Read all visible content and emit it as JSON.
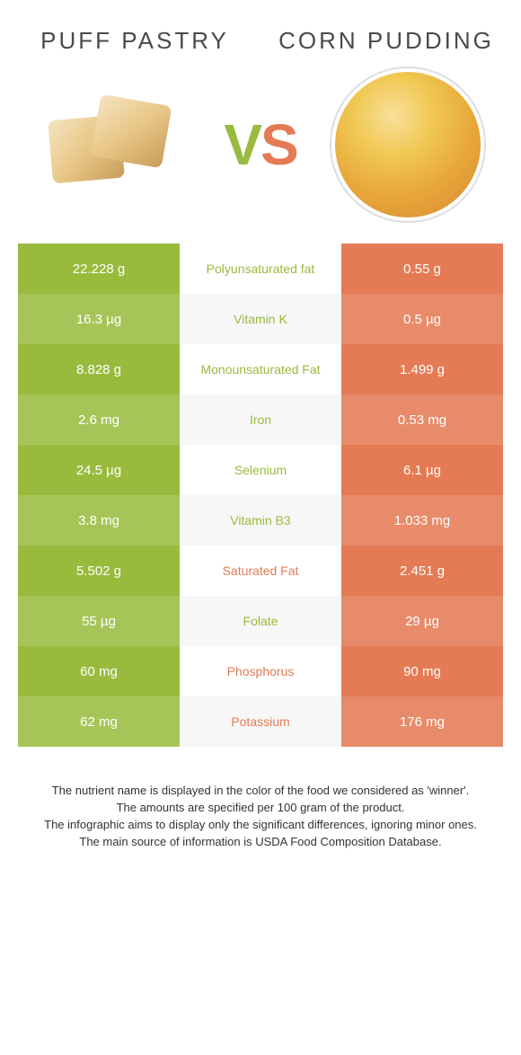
{
  "foods": {
    "left": {
      "title": "Puff pastry"
    },
    "right": {
      "title": "Corn pudding"
    }
  },
  "vs": "VS",
  "colors": {
    "left_odd": "#98bb3e",
    "left_even": "#a6c558",
    "right_odd": "#e47b55",
    "right_even": "#e78b6a",
    "mid_odd": "#ffffff",
    "mid_even": "#f7f7f7",
    "left_text": "#98bb3e",
    "right_text": "#e47b55"
  },
  "rows": [
    {
      "left": "22.228 g",
      "label": "Polyunsaturated fat",
      "right": "0.55 g",
      "winner": "left"
    },
    {
      "left": "16.3 µg",
      "label": "Vitamin K",
      "right": "0.5 µg",
      "winner": "left"
    },
    {
      "left": "8.828 g",
      "label": "Monounsaturated Fat",
      "right": "1.499 g",
      "winner": "left"
    },
    {
      "left": "2.6 mg",
      "label": "Iron",
      "right": "0.53 mg",
      "winner": "left"
    },
    {
      "left": "24.5 µg",
      "label": "Selenium",
      "right": "6.1 µg",
      "winner": "left"
    },
    {
      "left": "3.8 mg",
      "label": "Vitamin B3",
      "right": "1.033 mg",
      "winner": "left"
    },
    {
      "left": "5.502 g",
      "label": "Saturated Fat",
      "right": "2.451 g",
      "winner": "right"
    },
    {
      "left": "55 µg",
      "label": "Folate",
      "right": "29 µg",
      "winner": "left"
    },
    {
      "left": "60 mg",
      "label": "Phosphorus",
      "right": "90 mg",
      "winner": "right"
    },
    {
      "left": "62 mg",
      "label": "Potassium",
      "right": "176 mg",
      "winner": "right"
    }
  ],
  "footer": [
    "The nutrient name is displayed in the color of the food we considered as 'winner'.",
    "The amounts are specified per 100 gram of the product.",
    "The infographic aims to display only the significant differences, ignoring minor ones.",
    "The main source of information is USDA Food Composition Database."
  ]
}
